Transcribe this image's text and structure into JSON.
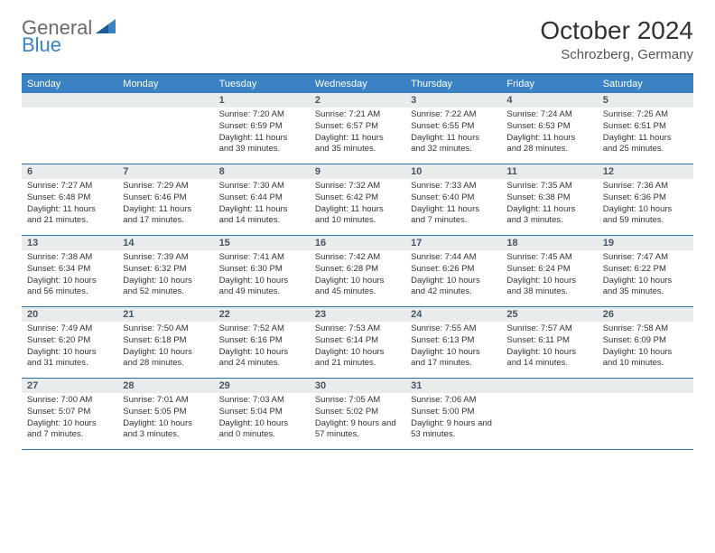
{
  "logo": {
    "general": "General",
    "blue": "Blue"
  },
  "title": "October 2024",
  "location": "Schrozberg, Germany",
  "colors": {
    "header_bg": "#3b82c4",
    "border": "#2f6fa8",
    "daynum_bg": "#e8eced",
    "text": "#333333",
    "logo_gray": "#6a6a6a",
    "logo_blue": "#3b82c4"
  },
  "dow": [
    "Sunday",
    "Monday",
    "Tuesday",
    "Wednesday",
    "Thursday",
    "Friday",
    "Saturday"
  ],
  "weeks": [
    [
      null,
      null,
      {
        "n": "1",
        "sr": "Sunrise: 7:20 AM",
        "ss": "Sunset: 6:59 PM",
        "dl": "Daylight: 11 hours and 39 minutes."
      },
      {
        "n": "2",
        "sr": "Sunrise: 7:21 AM",
        "ss": "Sunset: 6:57 PM",
        "dl": "Daylight: 11 hours and 35 minutes."
      },
      {
        "n": "3",
        "sr": "Sunrise: 7:22 AM",
        "ss": "Sunset: 6:55 PM",
        "dl": "Daylight: 11 hours and 32 minutes."
      },
      {
        "n": "4",
        "sr": "Sunrise: 7:24 AM",
        "ss": "Sunset: 6:53 PM",
        "dl": "Daylight: 11 hours and 28 minutes."
      },
      {
        "n": "5",
        "sr": "Sunrise: 7:25 AM",
        "ss": "Sunset: 6:51 PM",
        "dl": "Daylight: 11 hours and 25 minutes."
      }
    ],
    [
      {
        "n": "6",
        "sr": "Sunrise: 7:27 AM",
        "ss": "Sunset: 6:48 PM",
        "dl": "Daylight: 11 hours and 21 minutes."
      },
      {
        "n": "7",
        "sr": "Sunrise: 7:29 AM",
        "ss": "Sunset: 6:46 PM",
        "dl": "Daylight: 11 hours and 17 minutes."
      },
      {
        "n": "8",
        "sr": "Sunrise: 7:30 AM",
        "ss": "Sunset: 6:44 PM",
        "dl": "Daylight: 11 hours and 14 minutes."
      },
      {
        "n": "9",
        "sr": "Sunrise: 7:32 AM",
        "ss": "Sunset: 6:42 PM",
        "dl": "Daylight: 11 hours and 10 minutes."
      },
      {
        "n": "10",
        "sr": "Sunrise: 7:33 AM",
        "ss": "Sunset: 6:40 PM",
        "dl": "Daylight: 11 hours and 7 minutes."
      },
      {
        "n": "11",
        "sr": "Sunrise: 7:35 AM",
        "ss": "Sunset: 6:38 PM",
        "dl": "Daylight: 11 hours and 3 minutes."
      },
      {
        "n": "12",
        "sr": "Sunrise: 7:36 AM",
        "ss": "Sunset: 6:36 PM",
        "dl": "Daylight: 10 hours and 59 minutes."
      }
    ],
    [
      {
        "n": "13",
        "sr": "Sunrise: 7:38 AM",
        "ss": "Sunset: 6:34 PM",
        "dl": "Daylight: 10 hours and 56 minutes."
      },
      {
        "n": "14",
        "sr": "Sunrise: 7:39 AM",
        "ss": "Sunset: 6:32 PM",
        "dl": "Daylight: 10 hours and 52 minutes."
      },
      {
        "n": "15",
        "sr": "Sunrise: 7:41 AM",
        "ss": "Sunset: 6:30 PM",
        "dl": "Daylight: 10 hours and 49 minutes."
      },
      {
        "n": "16",
        "sr": "Sunrise: 7:42 AM",
        "ss": "Sunset: 6:28 PM",
        "dl": "Daylight: 10 hours and 45 minutes."
      },
      {
        "n": "17",
        "sr": "Sunrise: 7:44 AM",
        "ss": "Sunset: 6:26 PM",
        "dl": "Daylight: 10 hours and 42 minutes."
      },
      {
        "n": "18",
        "sr": "Sunrise: 7:45 AM",
        "ss": "Sunset: 6:24 PM",
        "dl": "Daylight: 10 hours and 38 minutes."
      },
      {
        "n": "19",
        "sr": "Sunrise: 7:47 AM",
        "ss": "Sunset: 6:22 PM",
        "dl": "Daylight: 10 hours and 35 minutes."
      }
    ],
    [
      {
        "n": "20",
        "sr": "Sunrise: 7:49 AM",
        "ss": "Sunset: 6:20 PM",
        "dl": "Daylight: 10 hours and 31 minutes."
      },
      {
        "n": "21",
        "sr": "Sunrise: 7:50 AM",
        "ss": "Sunset: 6:18 PM",
        "dl": "Daylight: 10 hours and 28 minutes."
      },
      {
        "n": "22",
        "sr": "Sunrise: 7:52 AM",
        "ss": "Sunset: 6:16 PM",
        "dl": "Daylight: 10 hours and 24 minutes."
      },
      {
        "n": "23",
        "sr": "Sunrise: 7:53 AM",
        "ss": "Sunset: 6:14 PM",
        "dl": "Daylight: 10 hours and 21 minutes."
      },
      {
        "n": "24",
        "sr": "Sunrise: 7:55 AM",
        "ss": "Sunset: 6:13 PM",
        "dl": "Daylight: 10 hours and 17 minutes."
      },
      {
        "n": "25",
        "sr": "Sunrise: 7:57 AM",
        "ss": "Sunset: 6:11 PM",
        "dl": "Daylight: 10 hours and 14 minutes."
      },
      {
        "n": "26",
        "sr": "Sunrise: 7:58 AM",
        "ss": "Sunset: 6:09 PM",
        "dl": "Daylight: 10 hours and 10 minutes."
      }
    ],
    [
      {
        "n": "27",
        "sr": "Sunrise: 7:00 AM",
        "ss": "Sunset: 5:07 PM",
        "dl": "Daylight: 10 hours and 7 minutes."
      },
      {
        "n": "28",
        "sr": "Sunrise: 7:01 AM",
        "ss": "Sunset: 5:05 PM",
        "dl": "Daylight: 10 hours and 3 minutes."
      },
      {
        "n": "29",
        "sr": "Sunrise: 7:03 AM",
        "ss": "Sunset: 5:04 PM",
        "dl": "Daylight: 10 hours and 0 minutes."
      },
      {
        "n": "30",
        "sr": "Sunrise: 7:05 AM",
        "ss": "Sunset: 5:02 PM",
        "dl": "Daylight: 9 hours and 57 minutes."
      },
      {
        "n": "31",
        "sr": "Sunrise: 7:06 AM",
        "ss": "Sunset: 5:00 PM",
        "dl": "Daylight: 9 hours and 53 minutes."
      },
      null,
      null
    ]
  ]
}
